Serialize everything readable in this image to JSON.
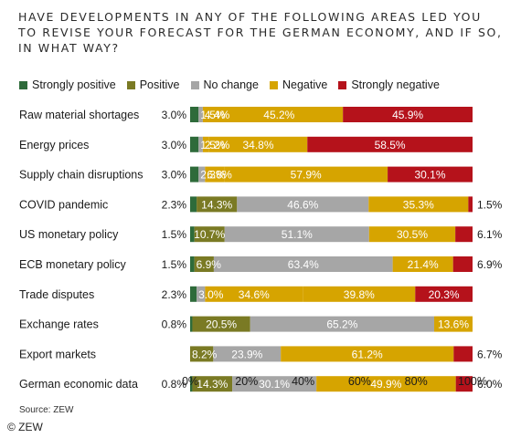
{
  "title_lines": [
    "HAVE DEVELOPMENTS IN ANY OF THE FOLLOWING AREAS LED YOU",
    "TO REVISE YOUR FORECAST FOR THE GERMAN ECONOMY, AND IF SO,",
    "IN WHAT WAY?"
  ],
  "source": "Source: ZEW",
  "copyright": "© ZEW",
  "chart_data": {
    "type": "bar",
    "orientation": "horizontal",
    "stacked": true,
    "title": "HAVE DEVELOPMENTS IN ANY OF THE FOLLOWING AREAS LED YOU TO REVISE YOUR FORECAST FOR THE GERMAN ECONOMY, AND IF SO, IN WHAT WAY?",
    "legend_position": "top",
    "xlim": [
      0,
      100
    ],
    "x_ticks": [
      "0%",
      "20%",
      "40%",
      "60%",
      "80%",
      "100%"
    ],
    "categories": [
      "Raw material shortages",
      "Energy prices",
      "Supply chain disruptions",
      "COVID pandemic",
      "US monetary policy",
      "ECB monetary policy",
      "Trade disputes",
      "Exchange rates",
      "Export markets",
      "German economic data"
    ],
    "series": [
      {
        "name": "Strongly positive",
        "color": "#2e6b3a",
        "values": [
          3.0,
          3.0,
          3.0,
          2.3,
          1.5,
          1.5,
          2.3,
          0.8,
          0.0,
          0.8
        ],
        "labels": [
          "3.0%",
          "3.0%",
          "3.0%",
          "2.3%",
          "1.5%",
          "1.5%",
          "2.3%",
          "0.8%",
          "",
          "0.8%"
        ]
      },
      {
        "name": "Positive",
        "color": "#7a7a24",
        "values": [
          0.0,
          0.0,
          0.0,
          14.3,
          10.7,
          6.9,
          0.0,
          20.5,
          8.2,
          14.3
        ],
        "labels": [
          "",
          "",
          "",
          "14.3%",
          "10.7%",
          "6.9%",
          "",
          "20.5%",
          "8.2%",
          "14.3%"
        ]
      },
      {
        "name": "No change",
        "color": "#a6a6a6",
        "values": [
          1.5,
          1.5,
          2.3,
          46.6,
          51.1,
          63.4,
          3.0,
          65.2,
          23.9,
          30.1
        ],
        "labels": [
          "1.5%",
          "1.5%",
          "2.3%",
          "46.6%",
          "51.1%",
          "63.4%",
          "3.0%",
          "65.2%",
          "23.9%",
          "30.1%"
        ]
      },
      {
        "name": "Negative",
        "color": "#d6a400",
        "values": [
          4.4,
          2.2,
          6.8,
          35.3,
          30.5,
          21.4,
          34.6,
          13.6,
          0.0,
          49.9
        ],
        "labels": [
          "4.4%",
          "2.2%",
          "6.8%",
          "35.3%",
          "30.5%",
          "21.4%",
          "34.6%",
          "13.6%",
          "",
          "49.9%"
        ]
      },
      {
        "name": "Negative",
        "color": "#d6a400",
        "values": [
          45.2,
          34.8,
          57.9,
          0.0,
          0.0,
          0.0,
          39.8,
          0.0,
          61.2,
          0.0
        ],
        "labels": [
          "45.2%",
          "34.8%",
          "57.9%",
          "",
          "",
          "",
          "39.8%",
          "",
          "61.2%",
          ""
        ]
      },
      {
        "name": "Strongly negative",
        "color": "#b5121b",
        "values": [
          45.9,
          58.5,
          30.1,
          1.5,
          6.1,
          6.9,
          20.3,
          0.0,
          6.7,
          6.0
        ],
        "labels": [
          "45.9%",
          "58.5%",
          "30.1%",
          "1.5%",
          "6.1%",
          "6.9%",
          "20.3%",
          "",
          "6.7%",
          "6.0%"
        ]
      }
    ],
    "legend": [
      {
        "name": "Strongly positive",
        "color": "#2e6b3a"
      },
      {
        "name": "Positive",
        "color": "#7a7a24"
      },
      {
        "name": "No change",
        "color": "#a6a6a6"
      },
      {
        "name": "Negative",
        "color": "#d6a400"
      },
      {
        "name": "Strongly negative",
        "color": "#b5121b"
      }
    ]
  }
}
